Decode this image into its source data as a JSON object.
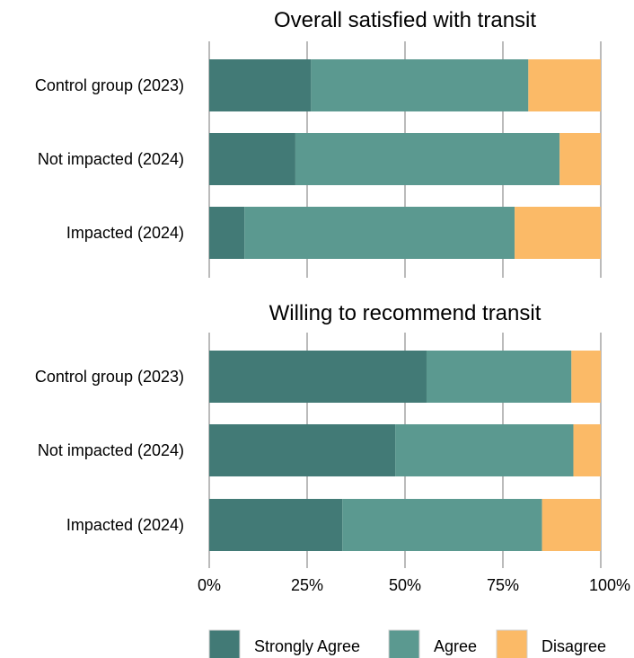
{
  "chart_data": {
    "type": "bar",
    "orientation": "horizontal",
    "stacked": true,
    "colors": {
      "Strongly Agree": "#427a76",
      "Agree": "#5b9990",
      "Disagree": "#fbba67"
    },
    "grid_color": "#777777",
    "xlim": [
      0,
      1
    ],
    "x_ticks": [
      {
        "value": 0,
        "label": "0%"
      },
      {
        "value": 0.25,
        "label": "25%"
      },
      {
        "value": 0.5,
        "label": "50%"
      },
      {
        "value": 0.75,
        "label": "75%"
      },
      {
        "value": 1,
        "label": "100%"
      }
    ],
    "legend": {
      "position": "bottom",
      "items": [
        "Strongly Agree",
        "Agree",
        "Disagree"
      ]
    },
    "panels": [
      {
        "title": "Overall satisfied with transit",
        "categories": [
          "Control group (2023)",
          "Not impacted (2024)",
          "Impacted (2024)"
        ],
        "series": [
          {
            "name": "Strongly Agree",
            "values": [
              0.26,
              0.22,
              0.09
            ]
          },
          {
            "name": "Agree",
            "values": [
              0.555,
              0.675,
              0.69
            ]
          },
          {
            "name": "Disagree",
            "values": [
              0.185,
              0.105,
              0.22
            ]
          }
        ]
      },
      {
        "title": "Willing to recommend transit",
        "categories": [
          "Control group (2023)",
          "Not impacted (2024)",
          "Impacted (2024)"
        ],
        "series": [
          {
            "name": "Strongly Agree",
            "values": [
              0.555,
              0.475,
              0.34
            ]
          },
          {
            "name": "Agree",
            "values": [
              0.37,
              0.455,
              0.51
            ]
          },
          {
            "name": "Disagree",
            "values": [
              0.075,
              0.07,
              0.15
            ]
          }
        ]
      }
    ]
  }
}
